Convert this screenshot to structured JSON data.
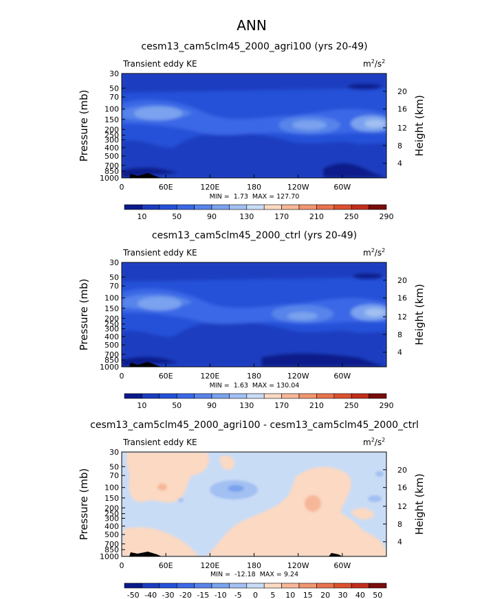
{
  "figure": {
    "suptitle": "ANN"
  },
  "chart_data": [
    {
      "type": "heatmap",
      "title": "cesm13_cam5clm45_2000_agri100 (yrs 20-49)",
      "left_label": "Transient eddy KE",
      "right_label": "m²/s²",
      "units_base": "m",
      "units_sup1": "2",
      "units_mid": "/s",
      "units_sup2": "2",
      "ylabel": "Pressure (mb)",
      "y2label": "Height (km)",
      "x_ticks": [
        "0",
        "60E",
        "120E",
        "180",
        "120W",
        "60W"
      ],
      "y_ticks": [
        "30",
        "50",
        "70",
        "100",
        "150",
        "200",
        "250",
        "300",
        "400",
        "500",
        "700",
        "850",
        "1000"
      ],
      "y2_ticks": [
        "20",
        "16",
        "12",
        "8",
        "4"
      ],
      "min_label": "MIN =",
      "min_value": "1.73",
      "max_label": "MAX =",
      "max_value": "127.70",
      "colorbar_labels": [
        "10",
        "50",
        "90",
        "130",
        "170",
        "210",
        "250",
        "290"
      ],
      "palette": [
        "#0a1a8a",
        "#1a3cc0",
        "#2551d8",
        "#3a68e6",
        "#5784ea",
        "#7aa2ee",
        "#a2c0f2",
        "#c9dcf6",
        "#fbd9c2",
        "#f6b798",
        "#f09670",
        "#e8734e",
        "#dc502f",
        "#c22e1c",
        "#7a0c0c"
      ],
      "fields": {
        "background": 1.8,
        "blobs": [
          {
            "x": 0,
            "y": 150,
            "w": 60,
            "h": 20,
            "v": 2.6
          },
          {
            "x": 60,
            "y": 150,
            "w": 40,
            "h": 16,
            "v": 3.4
          },
          {
            "x": 200,
            "y": 170,
            "w": 40,
            "h": 14,
            "v": 3.0
          },
          {
            "x": 350,
            "y": 160,
            "w": 40,
            "h": 16,
            "v": 3.3
          },
          {
            "x": 180,
            "y": 500,
            "w": 120,
            "h": 80,
            "v": 1.2
          }
        ]
      }
    },
    {
      "type": "heatmap",
      "title": "cesm13_cam5clm45_2000_ctrl (yrs 20-49)",
      "left_label": "Transient eddy KE",
      "right_label": "m²/s²",
      "units_base": "m",
      "units_sup1": "2",
      "units_mid": "/s",
      "units_sup2": "2",
      "ylabel": "Pressure (mb)",
      "y2label": "Height (km)",
      "x_ticks": [
        "0",
        "60E",
        "120E",
        "180",
        "120W",
        "60W"
      ],
      "y_ticks": [
        "30",
        "50",
        "70",
        "100",
        "150",
        "200",
        "250",
        "300",
        "400",
        "500",
        "700",
        "850",
        "1000"
      ],
      "y2_ticks": [
        "20",
        "16",
        "12",
        "8",
        "4"
      ],
      "min_label": "MIN =",
      "min_value": "1.63",
      "max_label": "MAX =",
      "max_value": "130.04",
      "colorbar_labels": [
        "10",
        "50",
        "90",
        "130",
        "170",
        "210",
        "250",
        "290"
      ],
      "palette": [
        "#0a1a8a",
        "#1a3cc0",
        "#2551d8",
        "#3a68e6",
        "#5784ea",
        "#7aa2ee",
        "#a2c0f2",
        "#c9dcf6",
        "#fbd9c2",
        "#f6b798",
        "#f09670",
        "#e8734e",
        "#dc502f",
        "#c22e1c",
        "#7a0c0c"
      ],
      "fields": {
        "background": 1.8,
        "blobs": []
      }
    },
    {
      "type": "heatmap",
      "title": "cesm13_cam5clm45_2000_agri100 - cesm13_cam5clm45_2000_ctrl",
      "left_label": "Transient eddy KE",
      "right_label": "m²/s²",
      "units_base": "m",
      "units_sup1": "2",
      "units_mid": "/s",
      "units_sup2": "2",
      "ylabel": "Pressure (mb)",
      "y2label": "Height (km)",
      "x_ticks": [
        "0",
        "60E",
        "120E",
        "180",
        "120W",
        "60W"
      ],
      "y_ticks": [
        "30",
        "50",
        "70",
        "100",
        "150",
        "200",
        "250",
        "300",
        "400",
        "500",
        "700",
        "850",
        "1000"
      ],
      "y2_ticks": [
        "20",
        "16",
        "12",
        "8",
        "4"
      ],
      "min_label": "MIN =",
      "min_value": "-12.18",
      "max_label": "MAX =",
      "max_value": "9.24",
      "colorbar_labels": [
        "-50",
        "-40",
        "-30",
        "-20",
        "-15",
        "-10",
        "-5",
        "0",
        "5",
        "10",
        "15",
        "20",
        "30",
        "40",
        "50"
      ],
      "palette": [
        "#0a1a8a",
        "#1a3cc0",
        "#2551d8",
        "#3a68e6",
        "#5784ea",
        "#7aa2ee",
        "#a2c0f2",
        "#c9dcf6",
        "#fbd9c2",
        "#f6b798",
        "#f09670",
        "#e8734e",
        "#dc502f",
        "#c22e1c",
        "#7a0c0c"
      ]
    }
  ]
}
